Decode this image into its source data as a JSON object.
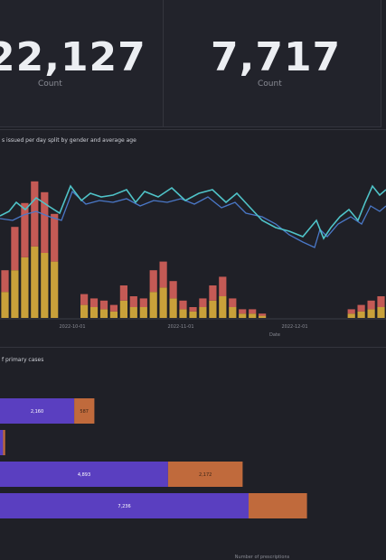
{
  "kpis": [
    {
      "value": "22,127",
      "label": "Count"
    },
    {
      "value": "7,717",
      "label": "Count"
    }
  ],
  "timeseries_panel": {
    "title": "s issued per day split by gender and average age",
    "xlabel": "Date",
    "x_ticks": [
      "2022-10-01",
      "2022-11-01",
      "2022-12-01"
    ]
  },
  "bar_panel": {
    "title": "f primary cases",
    "xlabel": "Number of prescriptions",
    "bars": [
      {
        "left_label": "2,160",
        "right_label": "587"
      },
      {
        "left_label": "",
        "right_label": ""
      },
      {
        "left_label": "4,893",
        "right_label": "2,172"
      },
      {
        "left_label": "7,236",
        "right_label": ""
      }
    ]
  },
  "chart_data": [
    {
      "type": "bar",
      "title": "",
      "stacked": true,
      "xlabel": "Date",
      "series": [
        {
          "name": "",
          "color": "#c9a13a",
          "values": [
            12,
            22,
            28,
            33,
            30,
            26,
            0,
            0,
            6,
            5,
            4,
            3,
            8,
            5,
            5,
            12,
            14,
            9,
            4,
            3,
            5,
            8,
            10,
            5,
            2,
            2,
            1,
            0,
            0,
            0,
            0,
            0,
            0,
            0,
            0,
            2,
            3,
            4,
            5
          ]
        },
        {
          "name": "",
          "color": "#c45a55",
          "values": [
            10,
            20,
            25,
            30,
            28,
            22,
            0,
            0,
            5,
            4,
            4,
            3,
            7,
            5,
            4,
            10,
            12,
            8,
            4,
            2,
            4,
            7,
            9,
            4,
            2,
            2,
            1,
            0,
            0,
            0,
            0,
            0,
            0,
            0,
            0,
            2,
            3,
            4,
            5
          ]
        }
      ]
    },
    {
      "type": "line",
      "title": "",
      "series": [
        {
          "name": "",
          "color": "#4fc3c8"
        },
        {
          "name": "",
          "color": "#4a78c8"
        }
      ]
    },
    {
      "type": "bar",
      "orientation": "horizontal",
      "stacked": true,
      "xlabel": "Number of prescriptions",
      "series": [
        {
          "name": "",
          "color": "#5a3fc0",
          "values": [
            2160,
            90,
            4893,
            7236
          ]
        },
        {
          "name": "",
          "color": "#c06a3c",
          "values": [
            587,
            60,
            2172,
            1700
          ]
        }
      ]
    }
  ],
  "colors": {
    "bg": "#1e1f26",
    "panel": "#22232b",
    "bar_yellow": "#c9a13a",
    "bar_red": "#c45a55",
    "line_teal": "#4fc3c8",
    "line_blue": "#4a78c8",
    "hbar_purple": "#5a3fc0",
    "hbar_orange": "#c06a3c"
  }
}
